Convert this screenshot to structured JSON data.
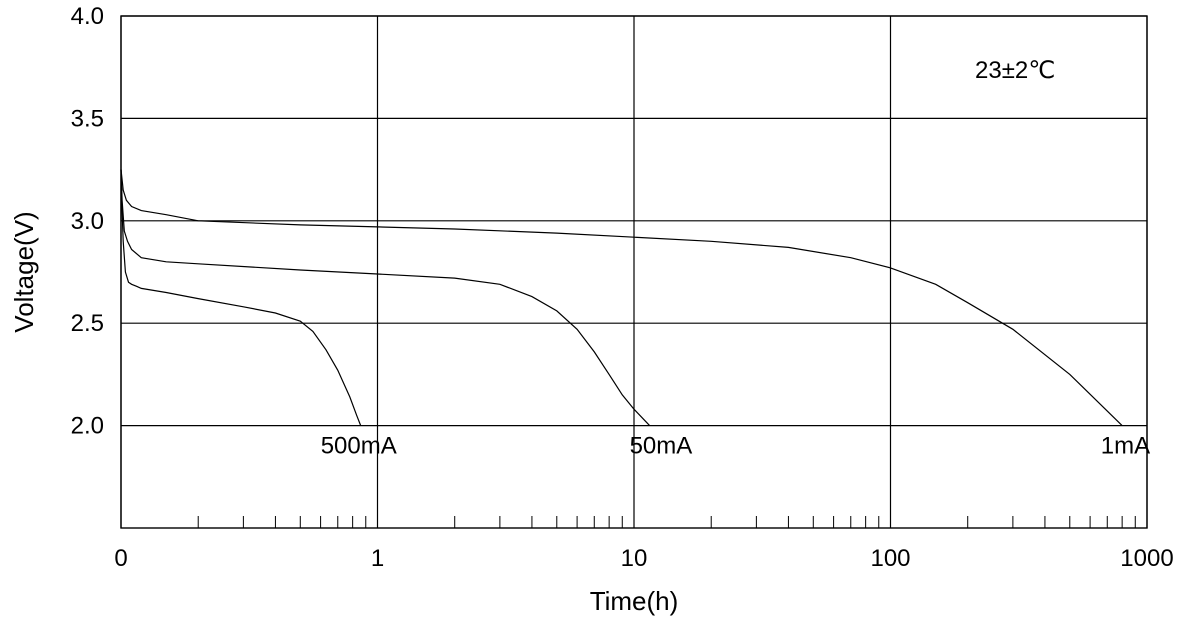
{
  "chart_data": {
    "type": "line",
    "title": "",
    "xlabel": "Time(h)",
    "ylabel": "Voltage(V)",
    "x_scale": "log",
    "x_ticks": [
      {
        "value": 0.1,
        "label": "0"
      },
      {
        "value": 1,
        "label": "1"
      },
      {
        "value": 10,
        "label": "10"
      },
      {
        "value": 100,
        "label": "100"
      },
      {
        "value": 1000,
        "label": "1000"
      }
    ],
    "y_ticks": [
      {
        "value": 2.0,
        "label": "2.0"
      },
      {
        "value": 2.5,
        "label": "2.5"
      },
      {
        "value": 3.0,
        "label": "3.0"
      },
      {
        "value": 3.5,
        "label": "3.5"
      },
      {
        "value": 4.0,
        "label": "4.0"
      }
    ],
    "xlim": [
      0.1,
      1000
    ],
    "ylim": [
      1.5,
      4.0
    ],
    "grid": true,
    "annotation": "23±2℃",
    "series": [
      {
        "name": "500mA",
        "label": "500mA",
        "points": [
          [
            0.1,
            3.25
          ],
          [
            0.101,
            3.05
          ],
          [
            0.102,
            2.9
          ],
          [
            0.104,
            2.75
          ],
          [
            0.107,
            2.7
          ],
          [
            0.11,
            2.69
          ],
          [
            0.115,
            2.68
          ],
          [
            0.12,
            2.67
          ],
          [
            0.15,
            2.65
          ],
          [
            0.2,
            2.62
          ],
          [
            0.3,
            2.58
          ],
          [
            0.4,
            2.55
          ],
          [
            0.5,
            2.51
          ],
          [
            0.56,
            2.46
          ],
          [
            0.63,
            2.37
          ],
          [
            0.7,
            2.27
          ],
          [
            0.78,
            2.14
          ],
          [
            0.83,
            2.05
          ],
          [
            0.86,
            2.0
          ]
        ]
      },
      {
        "name": "50mA",
        "label": "50mA",
        "points": [
          [
            0.1,
            3.25
          ],
          [
            0.101,
            3.1
          ],
          [
            0.103,
            2.95
          ],
          [
            0.106,
            2.9
          ],
          [
            0.11,
            2.86
          ],
          [
            0.12,
            2.82
          ],
          [
            0.15,
            2.8
          ],
          [
            0.2,
            2.79
          ],
          [
            0.5,
            2.76
          ],
          [
            1,
            2.74
          ],
          [
            2,
            2.72
          ],
          [
            3,
            2.69
          ],
          [
            4,
            2.63
          ],
          [
            5,
            2.56
          ],
          [
            6,
            2.47
          ],
          [
            7,
            2.36
          ],
          [
            8,
            2.25
          ],
          [
            9,
            2.15
          ],
          [
            10,
            2.08
          ],
          [
            11.5,
            2.0
          ]
        ]
      },
      {
        "name": "1mA",
        "label": "1mA",
        "points": [
          [
            0.1,
            3.25
          ],
          [
            0.102,
            3.15
          ],
          [
            0.105,
            3.1
          ],
          [
            0.11,
            3.07
          ],
          [
            0.12,
            3.05
          ],
          [
            0.15,
            3.03
          ],
          [
            0.2,
            3.0
          ],
          [
            0.5,
            2.98
          ],
          [
            1,
            2.97
          ],
          [
            2,
            2.96
          ],
          [
            5,
            2.94
          ],
          [
            10,
            2.92
          ],
          [
            20,
            2.9
          ],
          [
            40,
            2.87
          ],
          [
            70,
            2.82
          ],
          [
            100,
            2.77
          ],
          [
            150,
            2.69
          ],
          [
            200,
            2.6
          ],
          [
            300,
            2.47
          ],
          [
            500,
            2.25
          ],
          [
            800,
            2.0
          ]
        ]
      }
    ]
  }
}
